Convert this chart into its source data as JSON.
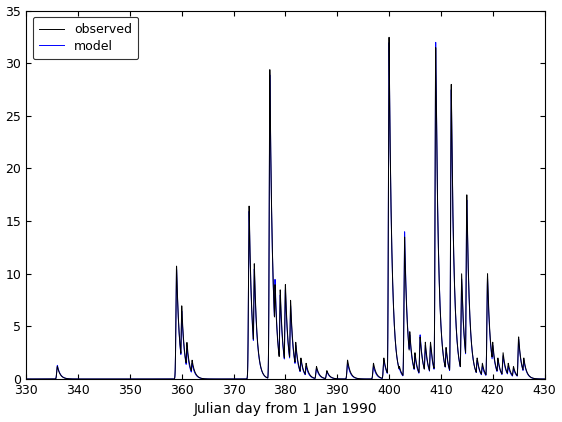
{
  "xlim": [
    330,
    430
  ],
  "ylim": [
    0,
    35
  ],
  "xlabel": "Julian day from 1 Jan 1990",
  "xticks": [
    330,
    340,
    350,
    360,
    370,
    380,
    390,
    400,
    410,
    420,
    430
  ],
  "yticks": [
    0,
    5,
    10,
    15,
    20,
    25,
    30,
    35
  ],
  "observed_color": "#000000",
  "model_color": "#0000ff",
  "background_color": "#ffffff",
  "legend_labels": [
    "observed",
    "model"
  ],
  "figsize": [
    5.62,
    4.22
  ],
  "dpi": 100,
  "obs_peaks": [
    [
      336,
      1.2
    ],
    [
      359,
      10.8
    ],
    [
      360,
      7.0
    ],
    [
      361,
      3.5
    ],
    [
      362,
      1.8
    ],
    [
      373,
      16.5
    ],
    [
      374,
      11.0
    ],
    [
      377,
      29.5
    ],
    [
      378,
      9.0
    ],
    [
      379,
      8.5
    ],
    [
      380,
      9.0
    ],
    [
      381,
      7.5
    ],
    [
      382,
      3.5
    ],
    [
      383,
      2.0
    ],
    [
      384,
      1.5
    ],
    [
      386,
      1.2
    ],
    [
      388,
      0.8
    ],
    [
      392,
      1.8
    ],
    [
      397,
      1.5
    ],
    [
      399,
      2.0
    ],
    [
      400,
      32.5
    ],
    [
      401,
      1.8
    ],
    [
      402,
      1.2
    ],
    [
      403,
      13.5
    ],
    [
      404,
      4.5
    ],
    [
      405,
      2.5
    ],
    [
      406,
      4.0
    ],
    [
      407,
      3.5
    ],
    [
      408,
      3.5
    ],
    [
      409,
      31.5
    ],
    [
      410,
      4.5
    ],
    [
      411,
      3.0
    ],
    [
      412,
      28.0
    ],
    [
      413,
      4.0
    ],
    [
      414,
      10.0
    ],
    [
      415,
      17.5
    ],
    [
      416,
      2.5
    ],
    [
      417,
      2.0
    ],
    [
      418,
      1.5
    ],
    [
      419,
      10.0
    ],
    [
      420,
      3.5
    ],
    [
      421,
      2.0
    ],
    [
      422,
      2.5
    ],
    [
      423,
      1.5
    ],
    [
      424,
      1.2
    ],
    [
      425,
      4.0
    ],
    [
      426,
      2.0
    ]
  ],
  "mod_peaks": [
    [
      336,
      1.3
    ],
    [
      359,
      10.5
    ],
    [
      360,
      6.5
    ],
    [
      361,
      3.0
    ],
    [
      362,
      1.5
    ],
    [
      373,
      16.0
    ],
    [
      374,
      10.5
    ],
    [
      377,
      29.0
    ],
    [
      378,
      9.5
    ],
    [
      379,
      8.0
    ],
    [
      380,
      8.5
    ],
    [
      381,
      7.0
    ],
    [
      382,
      3.2
    ],
    [
      383,
      1.8
    ],
    [
      384,
      1.2
    ],
    [
      386,
      1.0
    ],
    [
      388,
      0.7
    ],
    [
      392,
      1.5
    ],
    [
      397,
      1.2
    ],
    [
      399,
      1.8
    ],
    [
      400,
      32.0
    ],
    [
      401,
      1.5
    ],
    [
      402,
      1.0
    ],
    [
      403,
      14.0
    ],
    [
      404,
      4.2
    ],
    [
      405,
      2.2
    ],
    [
      406,
      4.2
    ],
    [
      407,
      3.2
    ],
    [
      408,
      3.2
    ],
    [
      409,
      32.0
    ],
    [
      410,
      4.2
    ],
    [
      411,
      2.8
    ],
    [
      412,
      27.5
    ],
    [
      413,
      3.8
    ],
    [
      414,
      9.5
    ],
    [
      415,
      17.0
    ],
    [
      416,
      2.2
    ],
    [
      417,
      1.8
    ],
    [
      418,
      1.2
    ],
    [
      419,
      9.5
    ],
    [
      420,
      3.2
    ],
    [
      421,
      1.8
    ],
    [
      422,
      2.2
    ],
    [
      423,
      1.2
    ],
    [
      424,
      1.0
    ],
    [
      425,
      3.8
    ],
    [
      426,
      1.8
    ]
  ],
  "recession_k": 0.55,
  "rise_k": 0.3
}
